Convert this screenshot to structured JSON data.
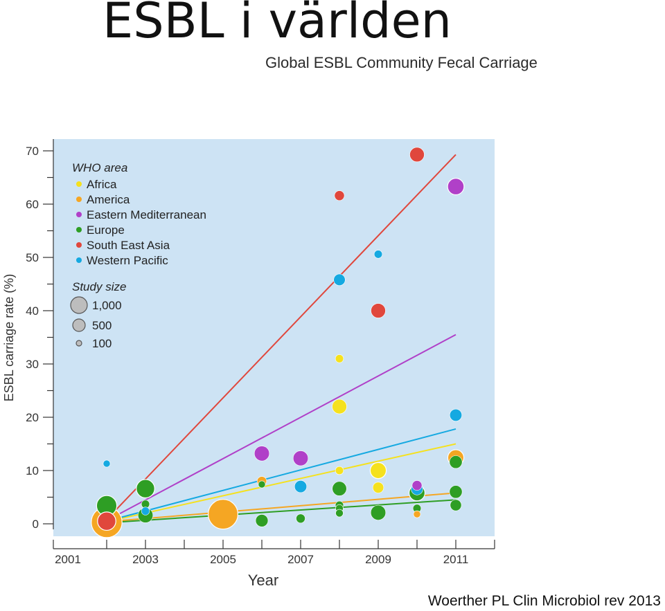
{
  "slide": {
    "title": "ESBL i världen",
    "credit": "Woerther PL Clin Microbiol rev 2013"
  },
  "chart_data": {
    "type": "scatter",
    "title": "Global ESBL Community Fecal Carriage",
    "xlabel": "Year",
    "ylabel": "ESBL carriage rate (%)",
    "xlim": [
      2001,
      2012
    ],
    "ylim": [
      0,
      70
    ],
    "x_ticks": [
      "2001",
      "2003",
      "2005",
      "2007",
      "2009",
      "2011"
    ],
    "y_ticks": [
      "0",
      "10",
      "20",
      "30",
      "40",
      "50",
      "60",
      "70"
    ],
    "legend": {
      "placement": "top-left",
      "title": "WHO area",
      "size_title": "Study size",
      "size_entries": [
        {
          "label": "1,000",
          "value": 1000
        },
        {
          "label": "500",
          "value": 500
        },
        {
          "label": "100",
          "value": 100
        }
      ]
    },
    "background_color": "#cde3f4",
    "series": [
      {
        "name": "Africa",
        "color": "#f5e11e",
        "trend": [
          [
            2002,
            0.4
          ],
          [
            2011,
            15
          ]
        ],
        "points": [
          [
            2008,
            31,
            60
          ],
          [
            2008,
            22,
            260
          ],
          [
            2008,
            10,
            60
          ],
          [
            2009,
            10,
            330
          ],
          [
            2009,
            6.8,
            130
          ]
        ]
      },
      {
        "name": "America",
        "color": "#f5a623",
        "trend": [
          [
            2002,
            0.4
          ],
          [
            2011,
            5.8
          ]
        ],
        "points": [
          [
            2002,
            0.3,
            1400
          ],
          [
            2005,
            1.8,
            1300
          ],
          [
            2006,
            8,
            90
          ],
          [
            2010,
            1.8,
            40
          ],
          [
            2011,
            12.4,
            330
          ]
        ]
      },
      {
        "name": "Eastern Mediterranean",
        "color": "#b040c8",
        "trend": [
          [
            2002,
            0.6
          ],
          [
            2011,
            35.5
          ]
        ],
        "points": [
          [
            2006,
            13.2,
            280
          ],
          [
            2007,
            12.3,
            280
          ],
          [
            2010,
            7.2,
            100
          ],
          [
            2011,
            63.3,
            350
          ]
        ]
      },
      {
        "name": "Europe",
        "color": "#2e9e24",
        "trend": [
          [
            2002,
            0.2
          ],
          [
            2011,
            4.5
          ]
        ],
        "points": [
          [
            2002,
            3.4,
            560
          ],
          [
            2003,
            6.6,
            450
          ],
          [
            2003,
            1.6,
            280
          ],
          [
            2003,
            3.7,
            60
          ],
          [
            2006,
            0.6,
            180
          ],
          [
            2006,
            7.4,
            40
          ],
          [
            2007,
            1.0,
            80
          ],
          [
            2008,
            6.6,
            250
          ],
          [
            2008,
            3.5,
            60
          ],
          [
            2008,
            2.9,
            50
          ],
          [
            2008,
            2.0,
            50
          ],
          [
            2009,
            2.1,
            280
          ],
          [
            2010,
            5.8,
            320
          ],
          [
            2010,
            2.9,
            60
          ],
          [
            2011,
            11.6,
            190
          ],
          [
            2011,
            6.0,
            190
          ],
          [
            2011,
            3.5,
            140
          ]
        ]
      },
      {
        "name": "South East Asia",
        "color": "#e0473c",
        "trend": [
          [
            2002,
            0.8
          ],
          [
            2011,
            69.3
          ]
        ],
        "points": [
          [
            2002,
            0.5,
            450
          ],
          [
            2008,
            61.6,
            100
          ],
          [
            2009,
            40,
            260
          ],
          [
            2010,
            69.3,
            260
          ]
        ]
      },
      {
        "name": "Western Pacific",
        "color": "#15a9e1",
        "trend": [
          [
            2002,
            0.5
          ],
          [
            2011,
            17.8
          ]
        ],
        "points": [
          [
            2002,
            11.3,
            40
          ],
          [
            2003,
            2.4,
            60
          ],
          [
            2007,
            7,
            170
          ],
          [
            2008,
            45.8,
            150
          ],
          [
            2009,
            50.6,
            60
          ],
          [
            2010,
            6.5,
            150
          ],
          [
            2011,
            20.4,
            170
          ]
        ]
      }
    ]
  }
}
